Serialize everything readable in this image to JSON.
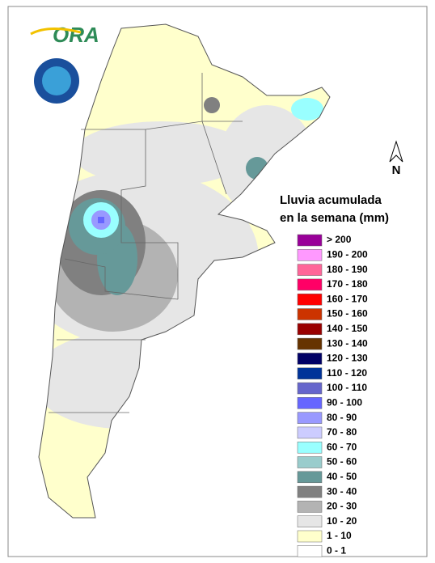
{
  "logo": {
    "text": "ORA"
  },
  "north_arrow": "N",
  "legend": {
    "title_lines": [
      "Lluvia acumulada",
      "en la semana (mm)"
    ],
    "items": [
      {
        "label": "> 200",
        "color": "#990099"
      },
      {
        "label": "190 - 200",
        "color": "#ff99ff"
      },
      {
        "label": "180 - 190",
        "color": "#ff6699"
      },
      {
        "label": "170 - 180",
        "color": "#ff0066"
      },
      {
        "label": "160 - 170",
        "color": "#ff0000"
      },
      {
        "label": "150 - 160",
        "color": "#cc3300"
      },
      {
        "label": "140 - 150",
        "color": "#990000"
      },
      {
        "label": "130 - 140",
        "color": "#663300"
      },
      {
        "label": "120 - 130",
        "color": "#000066"
      },
      {
        "label": "110 - 120",
        "color": "#003399"
      },
      {
        "label": "100 - 110",
        "color": "#6666cc"
      },
      {
        "label": "90 - 100",
        "color": "#6666ff"
      },
      {
        "label": "80 - 90",
        "color": "#9999ff"
      },
      {
        "label": "70 - 80",
        "color": "#ccccff"
      },
      {
        "label": "60 - 70",
        "color": "#99ffff"
      },
      {
        "label": "50 - 60",
        "color": "#99cccc"
      },
      {
        "label": "40 - 50",
        "color": "#669999"
      },
      {
        "label": "30 - 40",
        "color": "#808080"
      },
      {
        "label": "20 - 30",
        "color": "#b3b3b3"
      },
      {
        "label": "10 - 20",
        "color": "#e6e6e6"
      },
      {
        "label": "1 - 10",
        "color": "#ffffcc"
      },
      {
        "label": "0 - 1",
        "color": "#ffffff"
      }
    ]
  }
}
